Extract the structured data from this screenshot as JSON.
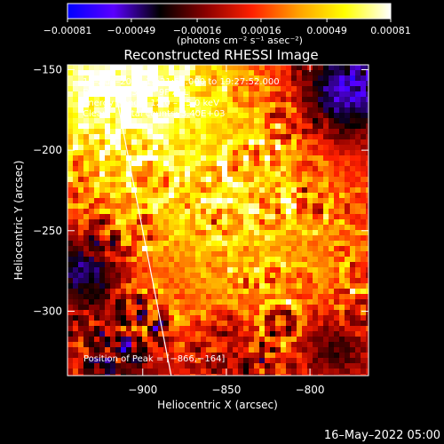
{
  "chart_data": {
    "type": "heatmap",
    "title": "Reconstructed RHESSI Image",
    "xlabel": "Heliocentric X (arcsec)",
    "ylabel": "Heliocentric Y (arcsec)",
    "xlim": [
      -945,
      -765
    ],
    "ylim": [
      -340,
      -147
    ],
    "x_ticks": [
      -900,
      -850,
      -800
    ],
    "x_tick_labels": [
      "−900",
      "−850",
      "−800"
    ],
    "y_ticks": [
      -150,
      -200,
      -250,
      -300
    ],
    "y_tick_labels": [
      "−150",
      "−200",
      "−250",
      "−300"
    ],
    "colorbar": {
      "min": -0.00081,
      "max": 0.00081,
      "ticks": [
        -0.00081,
        -0.00049,
        -0.00016,
        0.00016,
        0.00049,
        0.00081
      ],
      "tick_labels": [
        "−0.00081",
        "−0.00049",
        "−0.00016",
        "0.00016",
        "0.00049",
        "0.00081"
      ],
      "units_label": "(photons cm⁻² s⁻¹ asec⁻²)",
      "colors": [
        "#0000ff",
        "#5a00ff",
        "#000000",
        "#8b0000",
        "#ff2000",
        "#ffa000",
        "#ffff00",
        "#ffffff"
      ]
    },
    "annotations": [
      "18–Aug–2014 19:21:52.000 to 19:27:52.000",
      "Detectors: 3F 6F 9F ALL",
      "Energy Range: 12.0 – 25.0 keV",
      "Clean     Total counts: 3.40E+03"
    ],
    "peak_label": "Position of Peak = [−866,−164]",
    "peak_position": [
      -866,
      -164
    ],
    "limb_line": [
      [
        -917,
        -160
      ],
      [
        -883,
        -340
      ]
    ]
  },
  "footer_date": "16–May–2022 05:00"
}
